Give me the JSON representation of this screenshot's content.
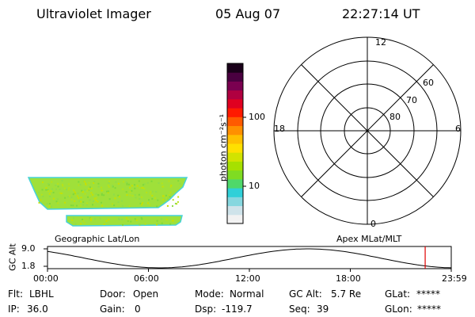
{
  "header": {
    "title": "Ultraviolet Imager",
    "date": "05 Aug 07",
    "time": "22:27:14 UT"
  },
  "colorbar": {
    "unit_label": "photon cm⁻²s⁻¹",
    "ticks": [
      {
        "label": "100",
        "value": 100
      },
      {
        "label": "10",
        "value": 10
      }
    ],
    "colors": [
      "#f2f2f2",
      "#cfe3ea",
      "#86d7df",
      "#2fd0d8",
      "#4fd86a",
      "#7fdc22",
      "#a6e000",
      "#d2e300",
      "#ffe000",
      "#ffc000",
      "#ff9000",
      "#ff5a00",
      "#ff1a00",
      "#e00020",
      "#b00040",
      "#7a0050",
      "#4a0040",
      "#1a001a"
    ]
  },
  "panels": {
    "left_label": "Geographic Lat/Lon",
    "right_label": "Apex MLat/MLT"
  },
  "polar": {
    "mlt_labels": {
      "top": "12",
      "left": "18",
      "right": "6",
      "bottom": "0"
    },
    "lat_labels": [
      "60",
      "70",
      "80"
    ]
  },
  "altitude_plot": {
    "y_label": "GC Alt",
    "y_ticks": [
      "9.0",
      "1.8"
    ],
    "x_ticks": [
      "00:00",
      "06:00",
      "12:00",
      "18:00",
      "23:59"
    ],
    "current_time_marker_hour": 22.45
  },
  "info": {
    "flt_label": "Flt:",
    "flt_value": "LBHL",
    "door_label": "Door:",
    "door_value": "Open",
    "mode_label": "Mode:",
    "mode_value": "Normal",
    "gcalt_label": "GC Alt:",
    "gcalt_value": "5.7 Re",
    "glat_label": "GLat:",
    "glat_value": "*****",
    "ip_label": "IP:",
    "ip_value": "36.0",
    "gain_label": "Gain:",
    "gain_value": "0",
    "dsp_label": "Dsp:",
    "dsp_value": "-119.7",
    "seq_label": "Seq:",
    "seq_value": "39",
    "glon_label": "GLon:",
    "glon_value": "*****"
  }
}
